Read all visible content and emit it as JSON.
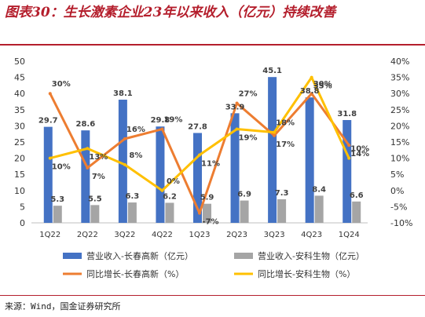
{
  "header": {
    "title": "图表30：生长激素企业23年以来收入（亿元）持续改善"
  },
  "footer": {
    "source": "来源：Wind，国金证券研究所"
  },
  "colors": {
    "bar_primary": "#4472C4",
    "bar_secondary": "#A5A5A5",
    "line_primary": "#ED7D31",
    "line_secondary": "#FFC000",
    "title": "#b41e2c"
  },
  "chart_data": {
    "type": "bar",
    "title": "",
    "categories": [
      "1Q22",
      "2Q22",
      "3Q22",
      "4Q22",
      "1Q23",
      "2Q23",
      "3Q23",
      "4Q23",
      "1Q24"
    ],
    "series": [
      {
        "name": "营业收入-长春高新（亿元）",
        "type": "bar",
        "axis": "left",
        "values": [
          29.7,
          28.6,
          38.1,
          29.8,
          27.8,
          33.9,
          45.1,
          38.8,
          31.8
        ],
        "labels": [
          "29.7",
          "28.6",
          "38.1",
          "29.8",
          "27.8",
          "33.9",
          "45.1",
          "38.8",
          "31.8"
        ]
      },
      {
        "name": "营业收入-安科生物（亿元）",
        "type": "bar",
        "axis": "left",
        "values": [
          5.3,
          5.5,
          6.3,
          6.2,
          5.9,
          6.9,
          7.3,
          8.4,
          6.6
        ],
        "labels": [
          "5.3",
          "5.5",
          "6.3",
          "6.2",
          "5.9",
          "6.9",
          "7.3",
          "8.4",
          "6.6"
        ]
      },
      {
        "name": "同比增长-长春高新（%）",
        "type": "line",
        "axis": "right",
        "values": [
          30,
          7,
          16,
          19,
          -7,
          27,
          17,
          30,
          14
        ],
        "labels": [
          "30%",
          "7%",
          "16%",
          "19%",
          "-7%",
          "27%",
          "17%",
          "30%",
          "14%"
        ]
      },
      {
        "name": "同比增长-安科生物（%）",
        "type": "line",
        "axis": "right",
        "values": [
          10,
          13,
          8,
          0,
          11,
          19,
          18,
          35,
          10
        ],
        "labels": [
          "10%",
          "13%",
          "8%",
          "0%",
          "11%",
          "19%",
          "18%",
          "35%",
          "10%"
        ]
      }
    ],
    "y_left": {
      "range": [
        0,
        50
      ],
      "ticks": [
        "0",
        "5",
        "10",
        "15",
        "20",
        "25",
        "30",
        "35",
        "40",
        "45",
        "50"
      ]
    },
    "y_right": {
      "range": [
        -10,
        40
      ],
      "ticks": [
        "-10%",
        "-5%",
        "0%",
        "5%",
        "10%",
        "15%",
        "20%",
        "25%",
        "30%",
        "35%",
        "40%"
      ]
    },
    "grid": false,
    "legend_position": "bottom"
  }
}
